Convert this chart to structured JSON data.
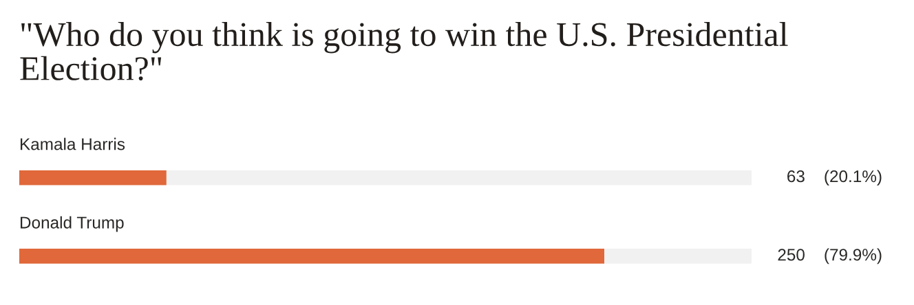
{
  "chart_data": {
    "type": "bar",
    "orientation": "horizontal",
    "stacked": true,
    "title": "\"Who do you think is going to win the U.S. Presidential Election?\"",
    "categories": [
      "Kamala Harris",
      "Donald Trump"
    ],
    "series": [
      {
        "color": "#e0683a",
        "values": [
          20.1,
          79.9
        ],
        "value_labels": [
          "63    (20.1%)",
          "250    (79.9%)"
        ]
      },
      {
        "color": "#f1f1f1",
        "values": [
          79.9,
          20.1
        ]
      }
    ],
    "xlim": [
      0,
      100
    ],
    "tick_labels": "y"
  }
}
